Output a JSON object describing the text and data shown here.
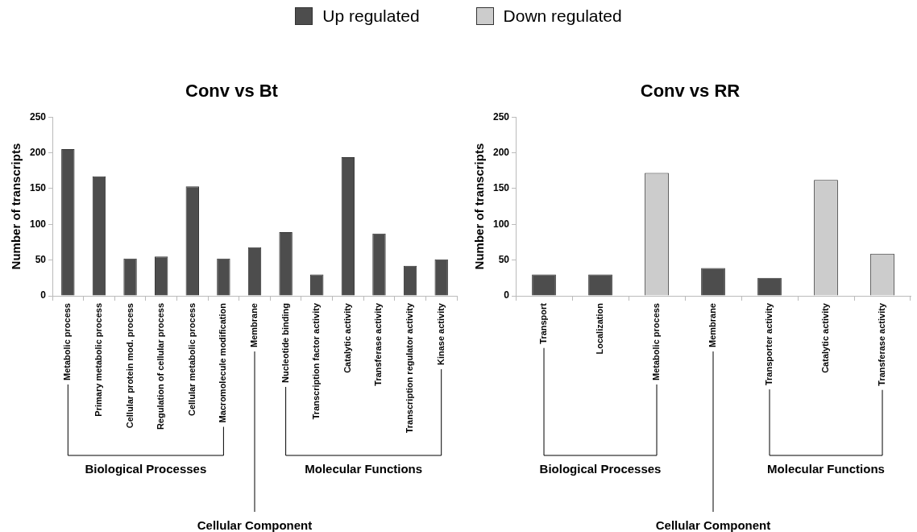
{
  "chart_data": [
    {
      "type": "bar",
      "title": "Conv vs Bt",
      "ylabel": "Number of transcripts",
      "categories": [
        "Metabolic process",
        "Primary metabolic process",
        "Cellular protein mod. process",
        "Regulation of cellular process",
        "Cellular metabolic process",
        "Macromolecule modification",
        "Membrane",
        "Nucleotide binding",
        "Transcription factor activity",
        "Catalytic activity",
        "Transferase activity",
        "Transcription regulator activity",
        "Kinase activity"
      ],
      "series": [
        {
          "name": "Up regulated",
          "color": "#4d4d4d",
          "values": [
            205,
            167,
            52,
            55,
            153,
            52,
            68,
            89,
            30,
            194,
            87,
            42,
            51
          ]
        },
        {
          "name": "Down regulated",
          "color": "#cccccc",
          "values": [
            null,
            null,
            null,
            null,
            null,
            null,
            null,
            null,
            null,
            null,
            null,
            null,
            null
          ]
        }
      ],
      "ylim": [
        0,
        250
      ],
      "yticks": [
        0,
        50,
        100,
        150,
        200,
        250
      ],
      "grid": false,
      "legend": "top",
      "annotations": [
        "Biological Processes",
        "Cellular Component",
        "Molecular Functions"
      ]
    },
    {
      "type": "bar",
      "title": "Conv vs RR",
      "ylabel": "Number of transcripts",
      "categories": [
        "Transport",
        "Localization",
        "Metabolic process",
        "Membrane",
        "Transporter activity",
        "Catalytic activity",
        "Transferase activity"
      ],
      "series": [
        {
          "color": "#4d4d4d",
          "values": [
            30,
            30,
            null,
            39,
            25,
            null,
            null
          ]
        },
        {
          "color": "#cccccc",
          "values": [
            null,
            null,
            172,
            null,
            null,
            162,
            59
          ]
        }
      ],
      "ylim": [
        0,
        250
      ],
      "yticks": [
        0,
        50,
        100,
        150,
        200,
        250
      ],
      "grid": false,
      "annotations": [
        "Biological Processes",
        "Cellular Component",
        "Molecular Functions"
      ]
    }
  ]
}
